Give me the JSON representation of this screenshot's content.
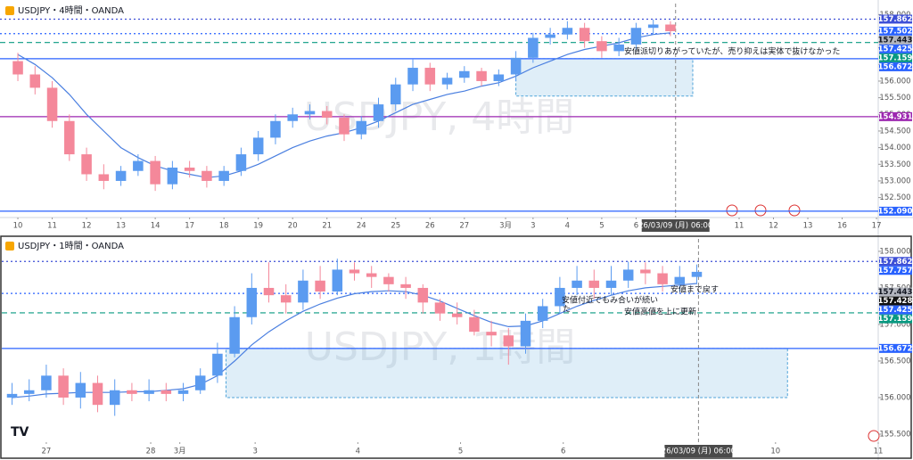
{
  "chart_data": [
    {
      "type": "candlestick",
      "title": "USDJPY・4時間・OANDA",
      "watermark": "USDJPY, 4時間",
      "x": [
        0,
        1,
        2,
        3,
        4,
        5,
        6,
        7,
        8,
        9,
        10,
        11,
        12,
        13,
        14,
        15,
        16,
        17,
        18,
        19,
        20,
        21,
        22,
        23,
        24,
        25,
        26,
        27,
        28,
        29,
        30,
        31,
        32,
        33,
        34,
        35,
        36,
        37,
        38
      ],
      "open": [
        156.6,
        156.2,
        155.8,
        154.8,
        153.8,
        153.2,
        153.0,
        153.3,
        153.6,
        152.9,
        153.4,
        153.3,
        153.0,
        153.3,
        153.8,
        154.3,
        154.8,
        155.0,
        155.1,
        154.9,
        154.4,
        154.8,
        155.3,
        155.9,
        156.4,
        155.9,
        156.1,
        156.3,
        156.0,
        156.2,
        156.7,
        157.3,
        157.4,
        157.6,
        157.2,
        156.9,
        157.1,
        157.6,
        157.7
      ],
      "high": [
        156.85,
        156.45,
        156.0,
        155.0,
        154.0,
        153.5,
        153.45,
        153.8,
        153.75,
        153.6,
        153.6,
        153.45,
        153.45,
        154.0,
        154.5,
        155.0,
        155.2,
        155.3,
        155.25,
        155.0,
        154.95,
        155.5,
        156.1,
        156.65,
        156.55,
        156.25,
        156.45,
        156.4,
        156.35,
        156.9,
        157.45,
        157.6,
        157.8,
        157.75,
        157.35,
        157.3,
        157.75,
        157.85,
        157.8
      ],
      "low": [
        156.0,
        155.6,
        154.6,
        153.6,
        153.0,
        152.75,
        152.85,
        153.15,
        152.7,
        152.75,
        153.1,
        152.8,
        152.85,
        153.15,
        153.6,
        154.1,
        154.6,
        154.85,
        154.7,
        154.2,
        154.25,
        154.6,
        155.1,
        155.7,
        155.7,
        155.75,
        155.95,
        155.85,
        155.85,
        156.0,
        156.55,
        157.1,
        157.25,
        157.0,
        156.7,
        156.75,
        156.95,
        157.4,
        157.35
      ],
      "close": [
        156.2,
        155.8,
        154.8,
        153.8,
        153.2,
        153.0,
        153.3,
        153.6,
        152.9,
        153.4,
        153.3,
        153.0,
        153.3,
        153.8,
        154.3,
        154.8,
        155.0,
        155.1,
        154.9,
        154.4,
        154.8,
        155.3,
        155.9,
        156.4,
        155.9,
        156.1,
        156.3,
        156.0,
        156.2,
        156.7,
        157.3,
        157.4,
        157.6,
        157.2,
        156.9,
        157.1,
        157.6,
        157.7,
        157.5
      ],
      "up_color": "#5b9bf0",
      "down_color": "#f4889a",
      "ma": {
        "color": "#4a7fe0",
        "values": [
          156.8,
          156.5,
          156.1,
          155.6,
          155.0,
          154.5,
          154.0,
          153.7,
          153.45,
          153.3,
          153.2,
          153.1,
          153.15,
          153.3,
          153.5,
          153.75,
          154.0,
          154.2,
          154.35,
          154.45,
          154.6,
          154.8,
          155.05,
          155.3,
          155.45,
          155.6,
          155.7,
          155.85,
          155.95,
          156.15,
          156.4,
          156.6,
          156.8,
          156.95,
          157.05,
          157.15,
          157.3,
          157.4,
          157.45
        ]
      },
      "xlim": [
        -1.04,
        50.1
      ],
      "xticks": [
        {
          "value": 0,
          "label": "10"
        },
        {
          "value": 2,
          "label": "11"
        },
        {
          "value": 4,
          "label": "12"
        },
        {
          "value": 6,
          "label": "13"
        },
        {
          "value": 8,
          "label": "14"
        },
        {
          "value": 10,
          "label": "17"
        },
        {
          "value": 12,
          "label": "18"
        },
        {
          "value": 14,
          "label": "19"
        },
        {
          "value": 16,
          "label": "20"
        },
        {
          "value": 18,
          "label": "21"
        },
        {
          "value": 20,
          "label": "24"
        },
        {
          "value": 22,
          "label": "25"
        },
        {
          "value": 24,
          "label": "26"
        },
        {
          "value": 26,
          "label": "27"
        },
        {
          "value": 28.4,
          "label": "3月"
        },
        {
          "value": 30,
          "label": "3"
        },
        {
          "value": 32,
          "label": "4"
        },
        {
          "value": 34,
          "label": "5"
        },
        {
          "value": 36,
          "label": "6"
        },
        {
          "value": 42,
          "label": "11"
        },
        {
          "value": 44,
          "label": "12"
        },
        {
          "value": 46,
          "label": "13"
        },
        {
          "value": 48,
          "label": "16"
        },
        {
          "value": 50,
          "label": "17"
        }
      ],
      "ylim": [
        151.9,
        158.33
      ],
      "yticks": [
        {
          "value": 152.5,
          "label": "152.500"
        },
        {
          "value": 153,
          "label": "153.000"
        },
        {
          "value": 153.5,
          "label": "153.500"
        },
        {
          "value": 154,
          "label": "154.000"
        },
        {
          "value": 154.5,
          "label": "154.500"
        },
        {
          "value": 155,
          "label": "155.000"
        },
        {
          "value": 155.5,
          "label": "155.500"
        },
        {
          "value": 156,
          "label": "156.000"
        },
        {
          "value": 156.5,
          "label": "156.500"
        },
        {
          "value": 157,
          "label": "157.000"
        },
        {
          "value": 157.5,
          "label": "157.500"
        },
        {
          "value": 158,
          "label": "158.000"
        }
      ],
      "grid": false,
      "levels": [
        {
          "value": 157.862,
          "label": "157.862",
          "color": "#3d4fd6",
          "style": "dotted"
        },
        {
          "value": 157.502,
          "label": "157.502",
          "color": "#2962ff",
          "style": "none"
        },
        {
          "value": 157.443,
          "label": "157.443",
          "color": "#b2b5be",
          "style": "none"
        },
        {
          "value": 157.425,
          "label": "157.425",
          "color": "#2962ff",
          "style": "dotted"
        },
        {
          "value": 157.159,
          "label": "157.159",
          "color": "#089981",
          "style": "dashed"
        },
        {
          "value": 156.672,
          "label": "156.672",
          "color": "#2962ff",
          "style": "solid"
        },
        {
          "value": 154.931,
          "label": "154.931",
          "color": "#9c27b0",
          "style": "solid"
        },
        {
          "value": 152.09,
          "label": "152.090",
          "color": "#2962ff",
          "style": "solid"
        }
      ],
      "zone": {
        "x": [
          29,
          39.3
        ],
        "y": [
          155.55,
          156.672
        ],
        "color": "#4fa3d9"
      },
      "time_marker": {
        "value": 38.3,
        "label": "26/03/09 (月)  06:00"
      },
      "annotations": [
        "安値派切りあがっていたが、売り抑えは実体で抜けなかった"
      ]
    },
    {
      "type": "candlestick",
      "title": "USDJPY・1時間・OANDA",
      "watermark": "USDJPY, 1時間",
      "x": [
        -2,
        -1,
        0,
        1,
        2,
        3,
        4,
        5,
        6,
        7,
        8,
        9,
        10,
        11,
        12,
        13,
        14,
        15,
        16,
        17,
        18,
        19,
        20,
        21,
        22,
        23,
        24,
        25,
        26,
        27,
        28,
        29,
        30,
        31,
        32,
        33,
        34,
        35,
        36,
        37,
        38
      ],
      "open": [
        156.0,
        156.05,
        156.1,
        156.3,
        156.0,
        156.2,
        155.9,
        156.1,
        156.05,
        156.1,
        156.05,
        156.1,
        156.3,
        156.6,
        157.1,
        157.5,
        157.4,
        157.3,
        157.6,
        157.45,
        157.75,
        157.7,
        157.65,
        157.55,
        157.5,
        157.3,
        157.15,
        157.1,
        156.9,
        156.85,
        156.7,
        157.05,
        157.25,
        157.5,
        157.6,
        157.5,
        157.6,
        157.75,
        157.7,
        157.55,
        157.65
      ],
      "high": [
        156.2,
        156.25,
        156.45,
        156.4,
        156.35,
        156.3,
        156.25,
        156.2,
        156.25,
        156.2,
        156.2,
        156.4,
        156.75,
        157.25,
        157.7,
        157.85,
        157.55,
        157.75,
        157.8,
        157.9,
        157.85,
        157.8,
        157.7,
        157.65,
        157.55,
        157.35,
        157.3,
        157.2,
        157.05,
        156.95,
        157.15,
        157.35,
        157.65,
        157.8,
        157.75,
        157.8,
        157.86,
        157.85,
        157.8,
        157.8,
        157.82
      ],
      "low": [
        155.9,
        155.95,
        156.0,
        155.9,
        155.85,
        155.8,
        155.75,
        155.95,
        155.95,
        155.95,
        155.95,
        156.05,
        156.2,
        156.55,
        157.0,
        157.3,
        157.15,
        157.2,
        157.35,
        157.4,
        157.6,
        157.5,
        157.45,
        157.35,
        157.15,
        157.05,
        157.0,
        156.85,
        156.7,
        156.45,
        156.6,
        156.95,
        157.15,
        157.4,
        157.35,
        157.4,
        157.5,
        157.55,
        157.45,
        157.45,
        157.55
      ],
      "close": [
        156.05,
        156.1,
        156.3,
        156.0,
        156.2,
        155.9,
        156.1,
        156.05,
        156.1,
        156.05,
        156.1,
        156.3,
        156.6,
        157.1,
        157.5,
        157.4,
        157.3,
        157.6,
        157.45,
        157.75,
        157.7,
        157.65,
        157.55,
        157.5,
        157.3,
        157.15,
        157.1,
        156.9,
        156.85,
        156.7,
        157.05,
        157.25,
        157.5,
        157.6,
        157.5,
        157.6,
        157.75,
        157.7,
        157.55,
        157.65,
        157.72
      ],
      "up_color": "#5b9bf0",
      "down_color": "#f4889a",
      "ma": {
        "color": "#4a7fe0",
        "values": [
          156.0,
          156.02,
          156.05,
          156.06,
          156.07,
          156.07,
          156.07,
          156.08,
          156.08,
          156.1,
          156.12,
          156.18,
          156.3,
          156.5,
          156.72,
          156.9,
          157.05,
          157.18,
          157.28,
          157.36,
          157.42,
          157.45,
          157.46,
          157.45,
          157.4,
          157.32,
          157.22,
          157.12,
          157.03,
          156.97,
          156.98,
          157.05,
          157.15,
          157.25,
          157.33,
          157.4,
          157.46,
          157.5,
          157.52,
          157.54,
          157.56
        ]
      },
      "xlim": [
        -2.6,
        48.6
      ],
      "xticks": [
        {
          "value": 0,
          "label": "27"
        },
        {
          "value": 6.1,
          "label": "28"
        },
        {
          "value": 7.8,
          "label": "3月"
        },
        {
          "value": 12.2,
          "label": "3"
        },
        {
          "value": 18.2,
          "label": "4"
        },
        {
          "value": 24.2,
          "label": "5"
        },
        {
          "value": 30.2,
          "label": "6"
        },
        {
          "value": 42.6,
          "label": "10"
        },
        {
          "value": 48.6,
          "label": "11"
        }
      ],
      "ylim": [
        155.39,
        158.17
      ],
      "yticks": [
        {
          "value": 155.5,
          "label": "155.500"
        },
        {
          "value": 156,
          "label": "156.000"
        },
        {
          "value": 156.5,
          "label": "156.500"
        },
        {
          "value": 157,
          "label": "157.000"
        },
        {
          "value": 157.5,
          "label": "157.500"
        },
        {
          "value": 158,
          "label": "158.000"
        }
      ],
      "grid": false,
      "levels": [
        {
          "value": 157.862,
          "label": "157.862",
          "color": "#3d4fd6",
          "style": "dotted"
        },
        {
          "value": 157.757,
          "label": "157.757",
          "color": "#2962ff",
          "style": "none"
        },
        {
          "value": 157.443,
          "label": "157.443",
          "color": "#b2b5be",
          "style": "none"
        },
        {
          "value": 157.428,
          "label": "157.428",
          "color": "#111111",
          "style": "none"
        },
        {
          "value": 157.425,
          "label": "157.425",
          "color": "#2962ff",
          "style": "dotted"
        },
        {
          "value": 157.159,
          "label": "157.159",
          "color": "#089981",
          "style": "dashed"
        },
        {
          "value": 156.672,
          "label": "156.672",
          "color": "#2962ff",
          "style": "solid"
        }
      ],
      "zone": {
        "x": [
          10.5,
          43.3
        ],
        "y": [
          156.0,
          156.672
        ],
        "color": "#4fa3d9"
      },
      "time_marker": {
        "value": 38.1,
        "label": "26/03/09 (月)  06:00"
      },
      "annotations": [
        "安値付近でもみ合いが続い",
        "た",
        "安値高値を上に更新",
        "安値まで戻す"
      ]
    }
  ]
}
